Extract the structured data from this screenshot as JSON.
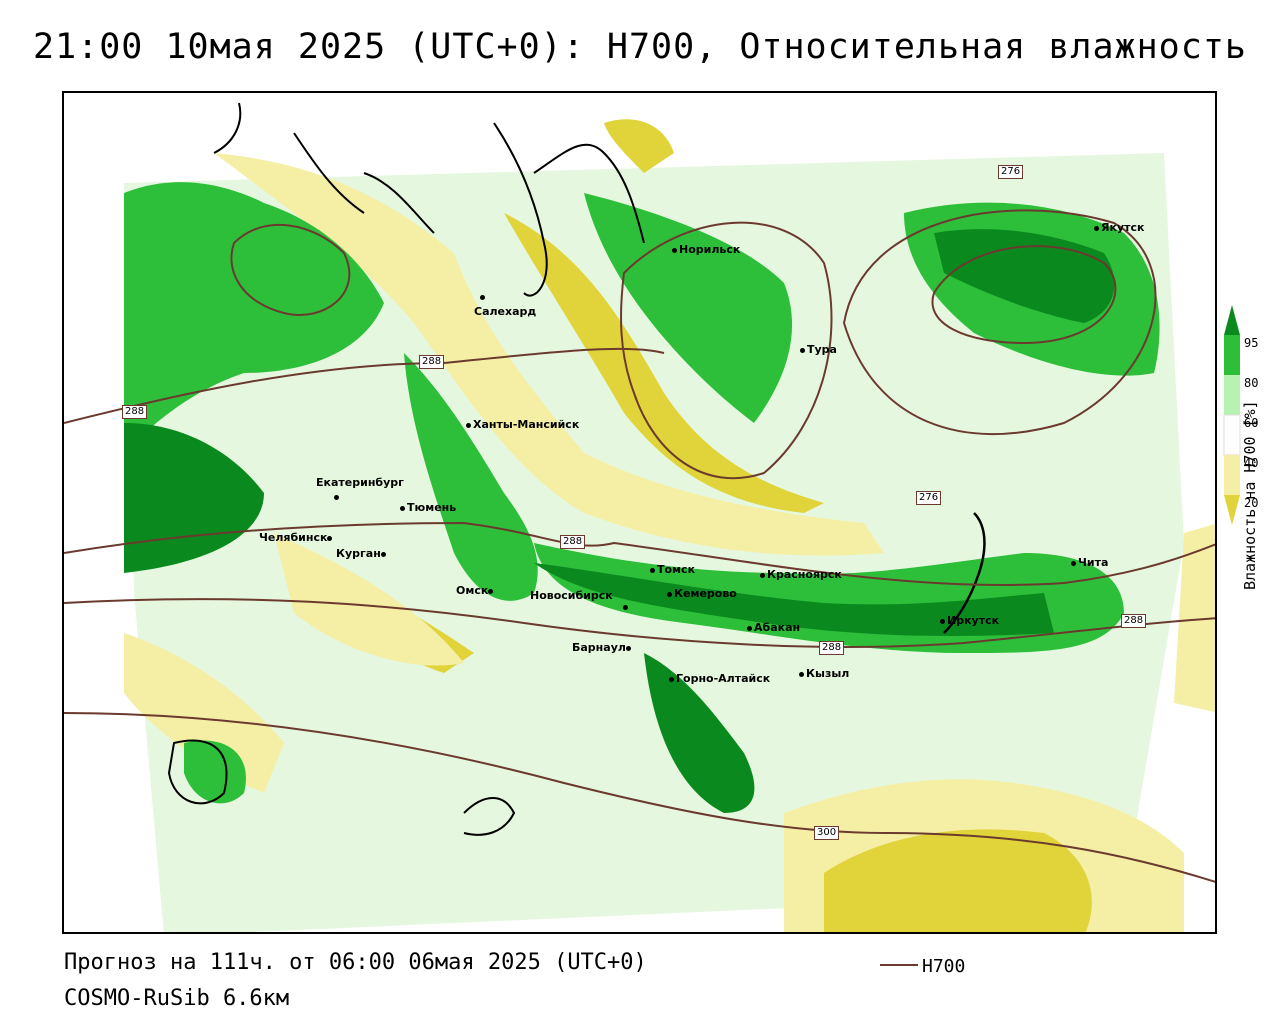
{
  "title": "21:00 10мая 2025 (UTC+0): Н700, Относительная влажность",
  "footer": {
    "forecast": "Прогноз на 111ч. от 06:00 06мая 2025 (UTC+0)",
    "model": "COSMO-RuSib 6.6км"
  },
  "legend": {
    "line_label": "Н700",
    "line_color": "#6b3a2e"
  },
  "colorbar": {
    "label": "Влажность на Н700 [%]",
    "ticks": [
      "95",
      "80",
      "60",
      "40",
      "20"
    ],
    "colors": {
      "95+": "#0a8a1e",
      "80-95": "#2dbf3a",
      "60-80": "#b8f2b0",
      "40-60": "#ffffff",
      "20-40": "#f5efa6",
      "<20": "#e0d43a"
    }
  },
  "cities": [
    "Норильск",
    "Якутск",
    "Салехард",
    "Тура",
    "Ханты-Мансийск",
    "Екатеринбург",
    "Тюмень",
    "Челябинск",
    "Курган",
    "Омск",
    "Томск",
    "Красноярск",
    "Новосибирск",
    "Кемерово",
    "Абакан",
    "Барнаул",
    "Горно-Алтайск",
    "Кызыл",
    "Иркутск",
    "Чита"
  ],
  "contour_labels": [
    "288",
    "288",
    "288",
    "288",
    "276",
    "276",
    "300",
    "288"
  ]
}
